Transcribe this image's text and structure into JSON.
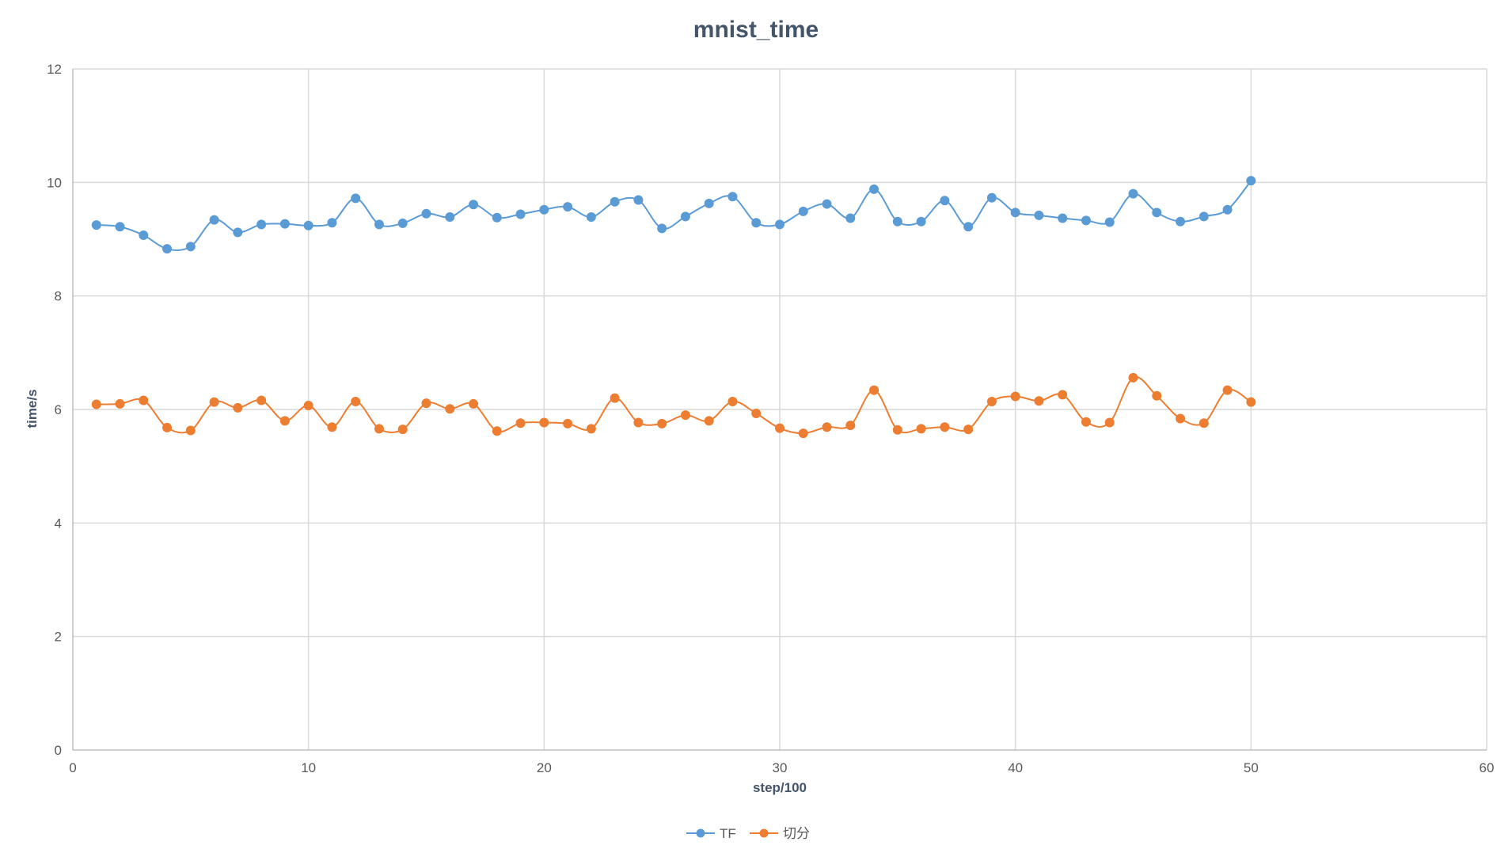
{
  "chart_data": {
    "type": "scatter",
    "title": "mnist_time",
    "xlabel": "step/100",
    "ylabel": "time/s",
    "xlim": [
      0,
      60
    ],
    "ylim": [
      0,
      12
    ],
    "xticks": [
      0,
      10,
      20,
      30,
      40,
      50,
      60
    ],
    "yticks": [
      0,
      2,
      4,
      6,
      8,
      10,
      12
    ],
    "grid": true,
    "legend_position": "bottom",
    "line_style": "smooth-with-markers",
    "x": [
      1,
      2,
      3,
      4,
      5,
      6,
      7,
      8,
      9,
      10,
      11,
      12,
      13,
      14,
      15,
      16,
      17,
      18,
      19,
      20,
      21,
      22,
      23,
      24,
      25,
      26,
      27,
      28,
      29,
      30,
      31,
      32,
      33,
      34,
      35,
      36,
      37,
      38,
      39,
      40,
      41,
      42,
      43,
      44,
      45,
      46,
      47,
      48,
      49,
      50
    ],
    "series": [
      {
        "name": "TF",
        "color": "#5b9bd5",
        "values": [
          9.25,
          9.22,
          9.07,
          8.83,
          8.87,
          9.34,
          9.12,
          9.26,
          9.27,
          9.24,
          9.29,
          9.72,
          9.26,
          9.28,
          9.45,
          9.39,
          9.61,
          9.38,
          9.44,
          9.52,
          9.57,
          9.39,
          9.66,
          9.69,
          9.19,
          9.4,
          9.63,
          9.75,
          9.29,
          9.26,
          9.49,
          9.62,
          9.37,
          9.88,
          9.31,
          9.31,
          9.68,
          9.22,
          9.73,
          9.47,
          9.42,
          9.37,
          9.33,
          9.3,
          9.8,
          9.47,
          9.31,
          9.4,
          9.52,
          10.03
        ]
      },
      {
        "name": "切分",
        "color": "#ed7d31",
        "values": [
          6.09,
          6.1,
          6.16,
          5.68,
          5.63,
          6.13,
          6.03,
          6.16,
          5.8,
          6.07,
          5.69,
          6.14,
          5.66,
          5.65,
          6.11,
          6.01,
          6.1,
          5.62,
          5.76,
          5.77,
          5.75,
          5.66,
          6.2,
          5.77,
          5.75,
          5.9,
          5.8,
          6.14,
          5.93,
          5.67,
          5.58,
          5.69,
          5.72,
          6.34,
          5.64,
          5.66,
          5.69,
          5.65,
          6.14,
          6.23,
          6.15,
          6.26,
          5.78,
          5.77,
          6.56,
          6.24,
          5.84,
          5.76,
          6.34,
          6.13
        ]
      }
    ]
  }
}
